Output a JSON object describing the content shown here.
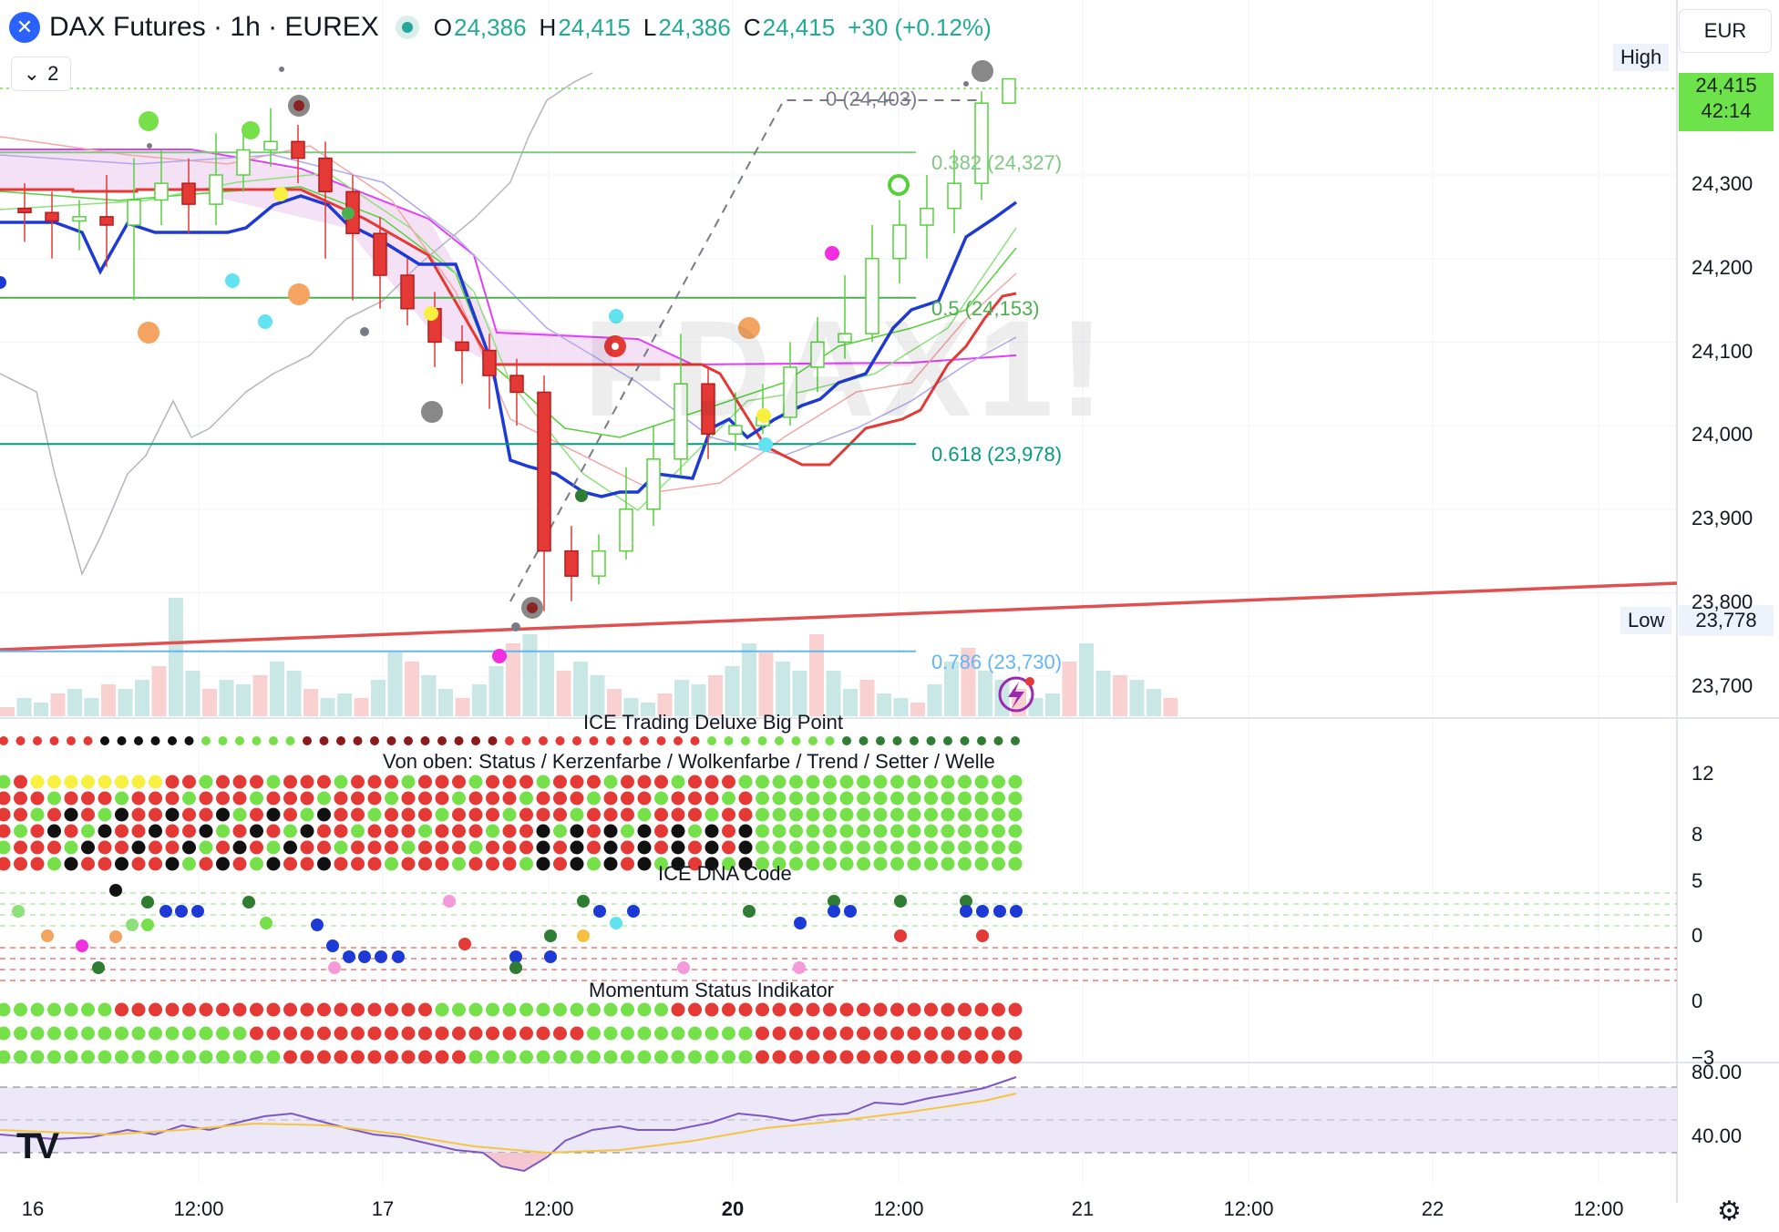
{
  "header": {
    "title": "DAX Futures · 1h · EUREX",
    "open_label": "O",
    "open": "24,386",
    "high_label": "H",
    "high": "24,415",
    "low_label": "L",
    "low": "24,386",
    "close_label": "C",
    "close": "24,415",
    "change": "+30 (+0.12%)",
    "indicator_count": "2",
    "currency": "EUR"
  },
  "watermark": "FDAX1!",
  "price_axis": {
    "high_tag": "High",
    "high_value": "24,415",
    "current_price": "24,415",
    "countdown": "42:14",
    "low_tag": "Low",
    "low_value": "23,778",
    "ticks": [
      "24,300",
      "24,200",
      "24,100",
      "24,000",
      "23,900",
      "23,800",
      "23,700"
    ]
  },
  "fibonacci": [
    {
      "label": "0 (24,403)",
      "value": 24403,
      "color": "#787b86"
    },
    {
      "label": "0.382 (24,327)",
      "value": 24327,
      "color": "#81c784"
    },
    {
      "label": "0.5 (24,153)",
      "value": 24153,
      "color": "#4caf50"
    },
    {
      "label": "0.618 (23,978)",
      "value": 23978,
      "color": "#089981"
    },
    {
      "label": "0.786 (23,730)",
      "value": 23730,
      "color": "#64b5f6"
    }
  ],
  "panes": {
    "big_point": {
      "title": "ICE Trading Deluxe Big Point"
    },
    "status": {
      "title": "Von oben: Status / Kerzenfarbe / Wolkenfarbe / Trend / Setter / Welle",
      "ticks": [
        "12",
        "8"
      ]
    },
    "dna": {
      "title": "ICE DNA Code",
      "ticks": [
        "5",
        "0"
      ]
    },
    "momentum": {
      "title": "Momentum Status Indikator",
      "ticks": [
        "0",
        "−3"
      ]
    },
    "rsi": {
      "ticks": [
        "80.00",
        "40.00"
      ]
    }
  },
  "time_axis": [
    "16",
    "12:00",
    "17",
    "12:00",
    "20",
    "12:00",
    "21",
    "12:00",
    "22",
    "12:00"
  ],
  "colors": {
    "up": "#4cd137",
    "down": "#e53935",
    "blue_line": "#1e3ad6",
    "red_line": "#e53935",
    "trendline": "#e05050",
    "cloud": "#f3d9f2"
  },
  "icons": {
    "symbol": "x-logo-icon",
    "collapse": "chevron-down-icon",
    "alert": "lightning-icon",
    "settings": "gear-icon",
    "logo": "tradingview-logo-icon"
  },
  "chart_data": {
    "type": "candlestick",
    "x": [
      "16 08:00",
      "16 09:00",
      "16 10:00",
      "16 11:00",
      "16 12:00",
      "16 13:00",
      "16 14:00",
      "16 15:00",
      "16 16:00",
      "16 17:00",
      "16 18:00",
      "16 19:00",
      "16 20:00",
      "16 21:00",
      "17 08:00",
      "17 09:00",
      "17 10:00",
      "17 11:00",
      "17 12:00",
      "17 13:00",
      "17 14:00",
      "17 15:00",
      "17 16:00",
      "17 17:00",
      "17 18:00",
      "17 19:00",
      "17 20:00",
      "17 21:00",
      "20 08:00",
      "20 09:00",
      "20 10:00",
      "20 11:00",
      "20 12:00",
      "20 13:00",
      "20 14:00",
      "20 15:00",
      "20 16:00"
    ],
    "open": [
      24260,
      24255,
      24245,
      24250,
      24240,
      24270,
      24290,
      24265,
      24300,
      24330,
      24340,
      24320,
      24280,
      24230,
      24180,
      24140,
      24100,
      24090,
      24060,
      24040,
      23850,
      23820,
      23850,
      23900,
      23960,
      24050,
      23990,
      24000,
      24010,
      24070,
      24100,
      24110,
      24200,
      24240,
      24260,
      24290,
      24386
    ],
    "close": [
      24255,
      24245,
      24250,
      24240,
      24270,
      24290,
      24265,
      24300,
      24330,
      24340,
      24320,
      24280,
      24230,
      24180,
      24140,
      24100,
      24090,
      24060,
      24040,
      23850,
      23820,
      23850,
      23900,
      23960,
      24050,
      23990,
      24000,
      24010,
      24070,
      24100,
      24110,
      24200,
      24240,
      24260,
      24290,
      24386,
      24415
    ],
    "high": [
      24290,
      24280,
      24270,
      24300,
      24320,
      24330,
      24320,
      24350,
      24360,
      24380,
      24360,
      24340,
      24300,
      24250,
      24200,
      24160,
      24120,
      24110,
      24080,
      24060,
      23880,
      23870,
      23950,
      24000,
      24110,
      24070,
      24040,
      24050,
      24100,
      24130,
      24180,
      24240,
      24270,
      24300,
      24330,
      24400,
      24415
    ],
    "low": [
      24220,
      24200,
      24210,
      24190,
      24150,
      24240,
      24230,
      24240,
      24280,
      24310,
      24290,
      24200,
      24150,
      24140,
      24120,
      24070,
      24050,
      24020,
      24000,
      23778,
      23790,
      23810,
      23840,
      23880,
      23940,
      23960,
      23970,
      23990,
      24000,
      24040,
      24080,
      24100,
      24170,
      24200,
      24230,
      24270,
      24386
    ],
    "yaxis_ticks": [
      24300,
      24200,
      24100,
      24000,
      23900,
      23800,
      23700
    ]
  }
}
